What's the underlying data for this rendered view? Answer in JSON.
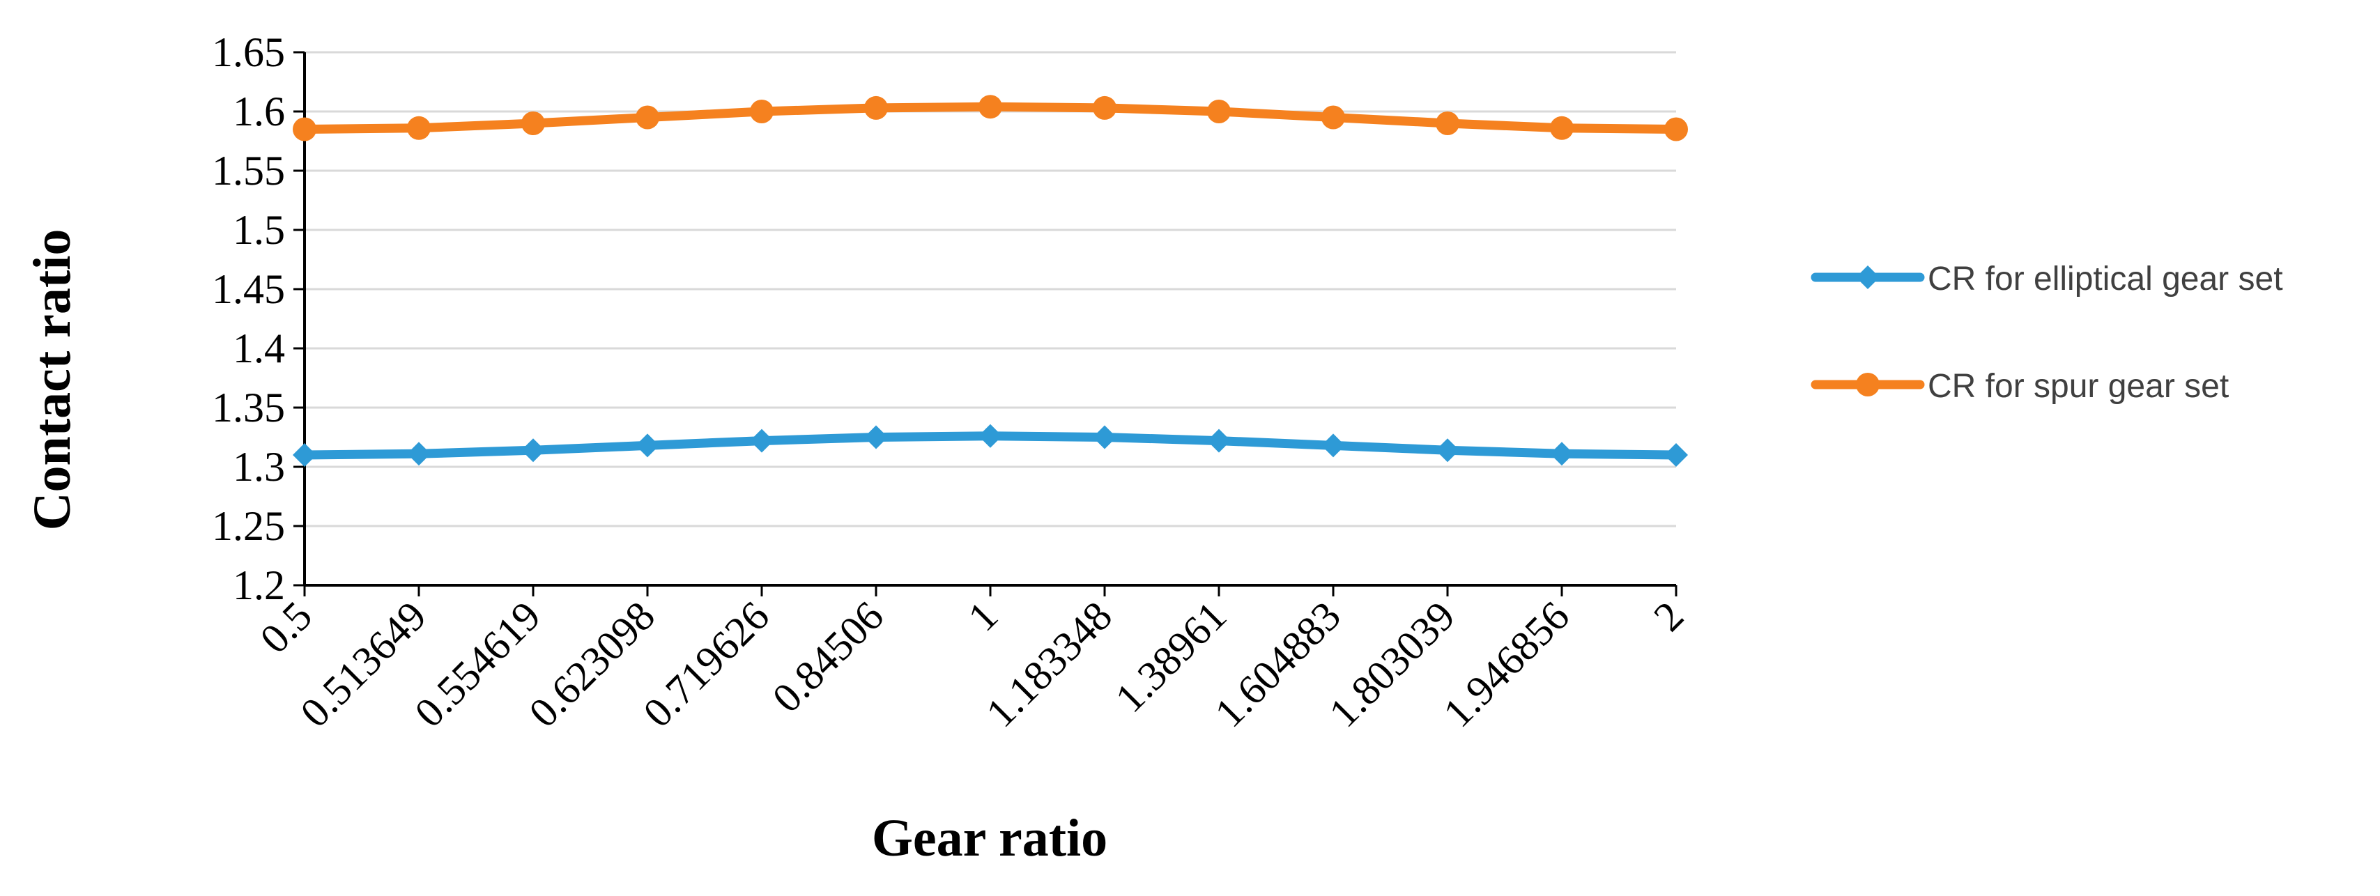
{
  "chart_data": {
    "type": "line",
    "title": "",
    "xlabel": "Gear ratio",
    "ylabel": "Contact ratio",
    "categories": [
      "0.5",
      "0.513649",
      "0.554619",
      "0.623098",
      "0.719626",
      "0.84506",
      "1",
      "1.183348",
      "1.38961",
      "1.604883",
      "1.803039",
      "1.946856",
      "2"
    ],
    "ylim": [
      1.2,
      1.65
    ],
    "yticks": [
      "1.2",
      "1.25",
      "1.3",
      "1.35",
      "1.4",
      "1.45",
      "1.5",
      "1.55",
      "1.6",
      "1.65"
    ],
    "grid": true,
    "legend_position": "right",
    "series": [
      {
        "name": "CR for elliptical gear set",
        "color": "#2E9AD6",
        "marker": "diamond",
        "values": [
          1.31,
          1.311,
          1.314,
          1.318,
          1.322,
          1.325,
          1.326,
          1.325,
          1.322,
          1.318,
          1.314,
          1.311,
          1.31
        ]
      },
      {
        "name": "CR for spur gear set",
        "color": "#F5811F",
        "marker": "circle",
        "values": [
          1.585,
          1.586,
          1.59,
          1.595,
          1.6,
          1.603,
          1.604,
          1.603,
          1.6,
          1.595,
          1.59,
          1.586,
          1.585
        ]
      }
    ]
  }
}
